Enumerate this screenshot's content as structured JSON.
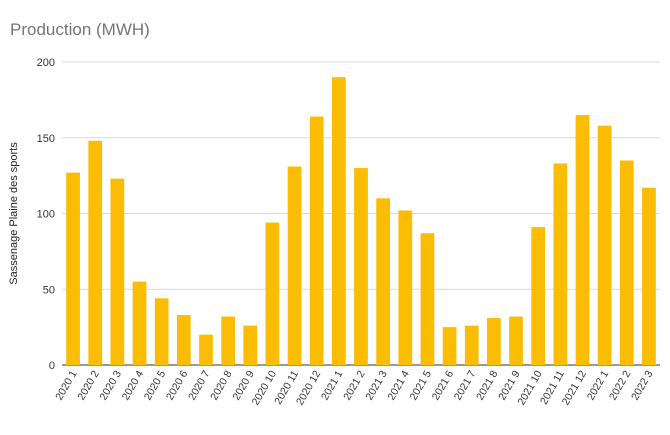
{
  "chart_data": {
    "type": "bar",
    "title": "Production (MWH)",
    "xlabel": "",
    "ylabel": "Sassenage Plaine des sports",
    "ylim": [
      0,
      200
    ],
    "yticks": [
      0,
      50,
      100,
      150,
      200
    ],
    "grid": true,
    "legend": "none",
    "bar_color": "#fbbc04",
    "categories": [
      "2020 1",
      "2020 2",
      "2020 3",
      "2020 4",
      "2020 5",
      "2020 6",
      "2020 7",
      "2020 8",
      "2020 9",
      "2020 10",
      "2020 11",
      "2020 12",
      "2021 1",
      "2021 2",
      "2021 3",
      "2021 4",
      "2021 5",
      "2021 6",
      "2021 7",
      "2021 8",
      "2021 9",
      "2021 10",
      "2021 11",
      "2021 12",
      "2022 1",
      "2022 2",
      "2022 3"
    ],
    "values": [
      127,
      148,
      123,
      55,
      44,
      33,
      20,
      32,
      26,
      94,
      131,
      164,
      190,
      130,
      110,
      102,
      87,
      25,
      26,
      31,
      32,
      91,
      133,
      165,
      158,
      135,
      117
    ]
  }
}
